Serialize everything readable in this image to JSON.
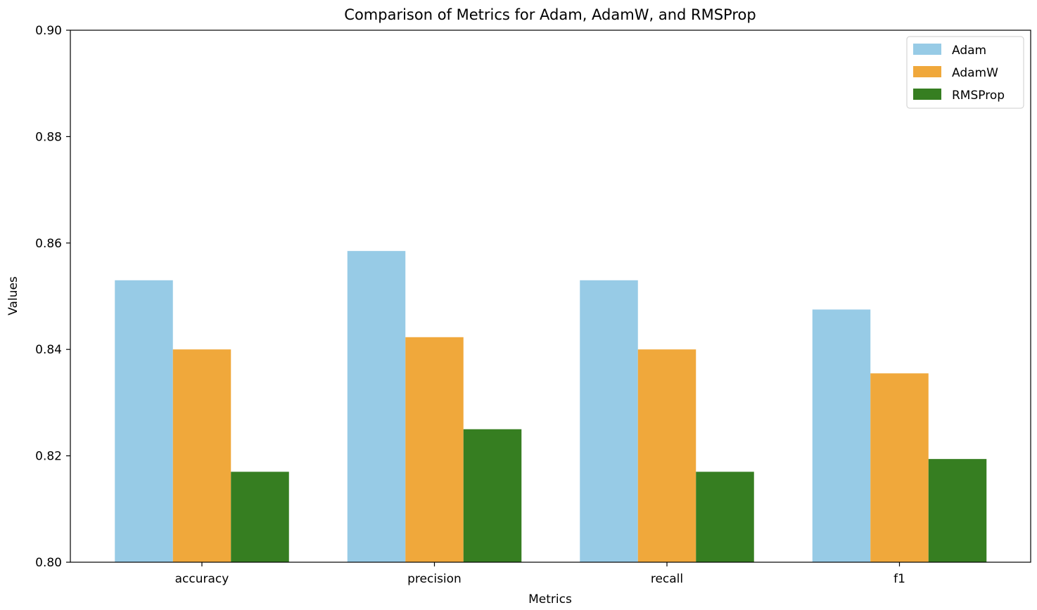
{
  "chart_data": {
    "type": "bar",
    "title": "Comparison of Metrics for Adam, AdamW, and RMSProp",
    "xlabel": "Metrics",
    "ylabel": "Values",
    "categories": [
      "accuracy",
      "precision",
      "recall",
      "f1"
    ],
    "series": [
      {
        "name": "Adam",
        "color": "#97cbe6",
        "values": [
          0.853,
          0.8585,
          0.853,
          0.8475
        ]
      },
      {
        "name": "AdamW",
        "color": "#f0a83b",
        "values": [
          0.84,
          0.8423,
          0.84,
          0.8355
        ]
      },
      {
        "name": "RMSProp",
        "color": "#367e21",
        "values": [
          0.817,
          0.825,
          0.817,
          0.8194
        ]
      }
    ],
    "ylim": [
      0.8,
      0.9
    ],
    "yticks": [
      "0.80",
      "0.82",
      "0.84",
      "0.86",
      "0.88",
      "0.90"
    ],
    "grid": false,
    "legend_position": "top-right"
  }
}
